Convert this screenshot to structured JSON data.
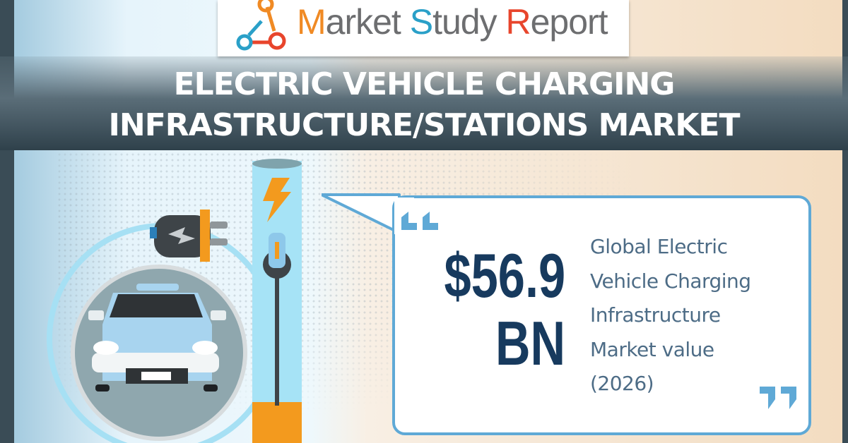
{
  "brand": {
    "logo_text": [
      "M",
      "arket ",
      "S",
      "tudy ",
      "R",
      "eport"
    ],
    "colors": {
      "m": "#f08a24",
      "s": "#2aa0c8",
      "r": "#e8452c"
    }
  },
  "header": {
    "title_line1": "ELECTRIC VEHICLE CHARGING",
    "title_line2": "INFRASTRUCTURE/STATIONS MARKET"
  },
  "stat": {
    "value": "$56.9",
    "unit": "BN",
    "description": [
      "Global Electric",
      "Vehicle Charging",
      "Infrastructure",
      "Market value",
      "(2026)"
    ]
  },
  "icons": [
    "plug-icon",
    "lightning-icon",
    "car-icon",
    "charging-station-icon",
    "quote-open-icon",
    "quote-close-icon"
  ],
  "colors": {
    "navy": "#173a5e",
    "accent_blue": "#5fa9d6",
    "orange": "#f39a1e",
    "dark": "#3a4c56"
  }
}
